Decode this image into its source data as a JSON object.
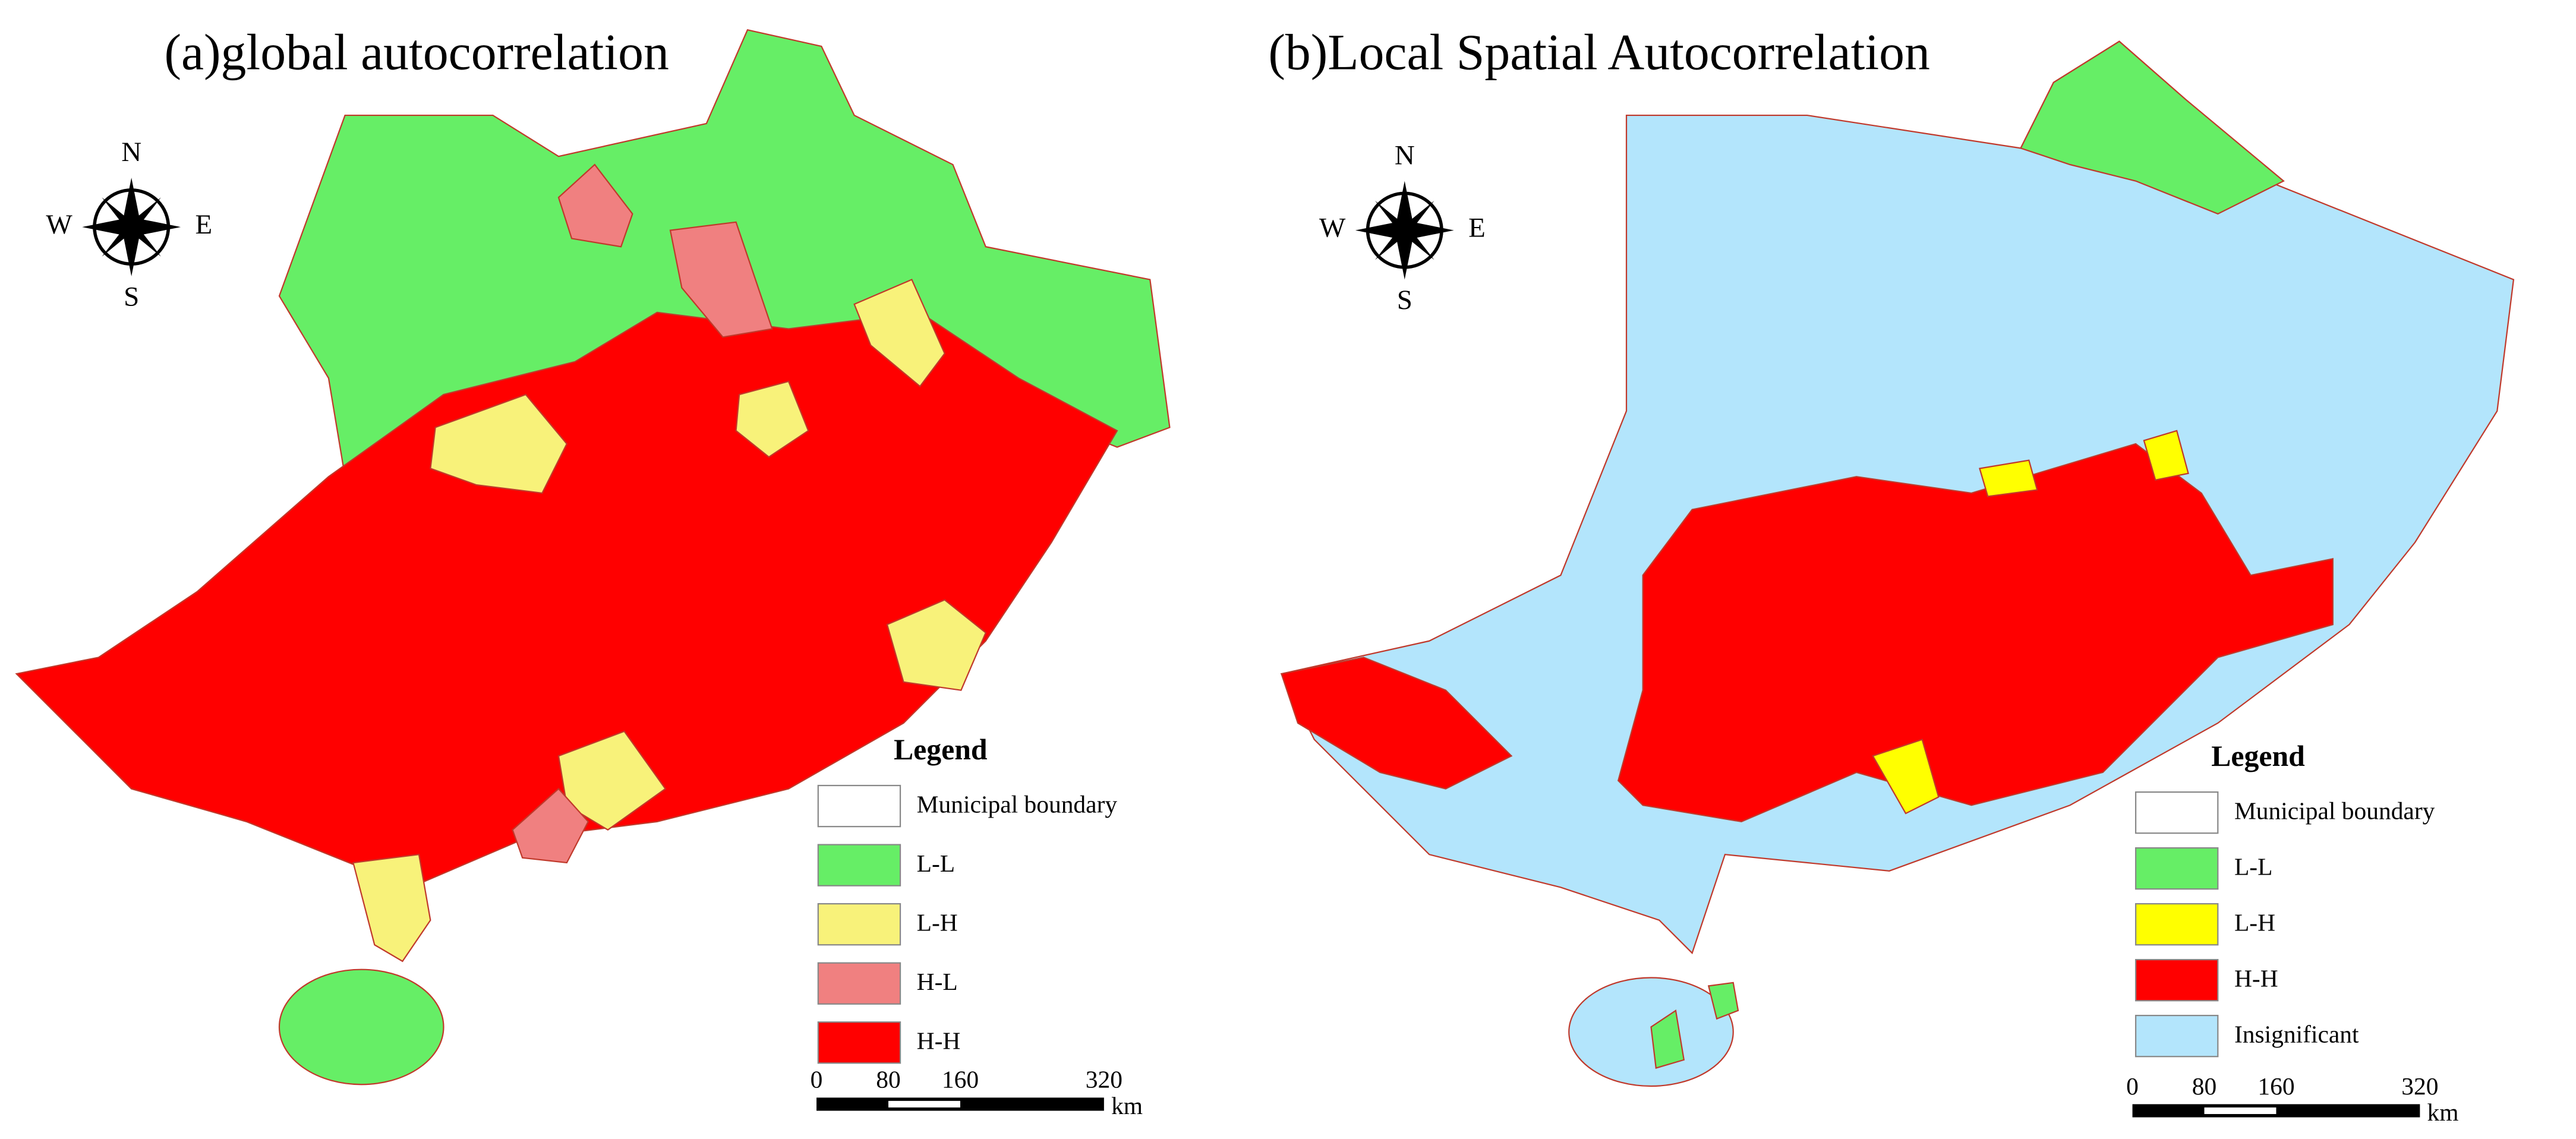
{
  "panels": [
    {
      "title": "(a)global autocorrelation",
      "compass": {
        "n": "N",
        "s": "S",
        "w": "W",
        "e": "E"
      },
      "legend": {
        "title": "Legend",
        "items": [
          {
            "label": "Municipal boundary",
            "color": "#ffffff"
          },
          {
            "label": "L-L",
            "color": "#66ee66"
          },
          {
            "label": "L-H",
            "color": "#f8f27a"
          },
          {
            "label": "H-L",
            "color": "#f08080"
          },
          {
            "label": "H-H",
            "color": "#ff0000"
          }
        ]
      },
      "scale_bar": {
        "ticks": [
          0,
          80,
          160,
          320
        ],
        "unit": "km"
      }
    },
    {
      "title": "(b)Local Spatial Autocorrelation",
      "compass": {
        "n": "N",
        "s": "S",
        "w": "W",
        "e": "E"
      },
      "legend": {
        "title": "Legend",
        "items": [
          {
            "label": "Municipal boundary",
            "color": "#ffffff"
          },
          {
            "label": "L-L",
            "color": "#66ee66"
          },
          {
            "label": "L-H",
            "color": "#ffff00"
          },
          {
            "label": "H-H",
            "color": "#ff0000"
          },
          {
            "label": "Insignificant",
            "color": "#b3e5fc"
          }
        ]
      },
      "scale_bar": {
        "ticks": [
          0,
          80,
          160,
          320
        ],
        "unit": "km"
      }
    }
  ]
}
